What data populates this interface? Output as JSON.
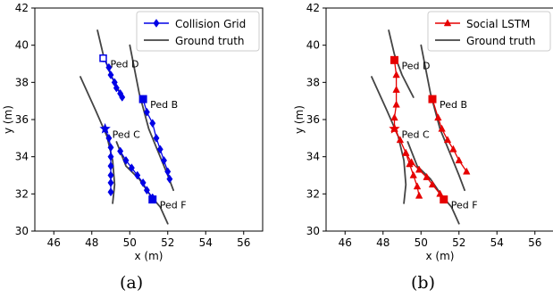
{
  "captions": [
    "(a)",
    "(b)"
  ],
  "chart_data": [
    {
      "type": "line",
      "xlabel": "x (m)",
      "ylabel": "y (m)",
      "xlim": [
        45,
        57
      ],
      "ylim": [
        30,
        42
      ],
      "xticks": [
        46,
        48,
        50,
        52,
        54,
        56
      ],
      "yticks": [
        30,
        32,
        34,
        36,
        38,
        40,
        42
      ],
      "grid": false,
      "legend_position": "top-right",
      "legend": [
        "Collision Grid",
        "Ground truth"
      ],
      "ground_truth": [
        [
          [
            48.3,
            40.8
          ],
          [
            48.6,
            39.5
          ],
          [
            49.0,
            38.4
          ],
          [
            49.4,
            37.6
          ],
          [
            49.6,
            37.2
          ]
        ],
        [
          [
            50.0,
            40.0
          ],
          [
            50.5,
            37.4
          ],
          [
            51.0,
            35.5
          ],
          [
            51.6,
            34.0
          ],
          [
            52.0,
            33.0
          ],
          [
            52.3,
            32.2
          ]
        ],
        [
          [
            47.4,
            38.3
          ],
          [
            48.2,
            36.5
          ],
          [
            48.8,
            35.1
          ],
          [
            49.1,
            33.8
          ],
          [
            49.2,
            32.5
          ],
          [
            49.1,
            31.5
          ]
        ],
        [
          [
            49.3,
            34.8
          ],
          [
            49.8,
            33.5
          ],
          [
            50.5,
            32.8
          ],
          [
            51.1,
            31.9
          ],
          [
            51.6,
            31.3
          ],
          [
            52.0,
            30.4
          ]
        ]
      ],
      "series": [
        {
          "color": "#0000e6",
          "marker": "diamond",
          "points": [
            [
              48.6,
              39.3
            ],
            [
              48.9,
              38.8
            ],
            [
              49.0,
              38.4
            ],
            [
              49.2,
              38.0
            ],
            [
              49.3,
              37.7
            ],
            [
              49.5,
              37.4
            ],
            [
              49.6,
              37.2
            ]
          ]
        },
        {
          "color": "#0000e6",
          "marker": "diamond",
          "points": [
            [
              50.7,
              37.1
            ],
            [
              50.9,
              36.4
            ],
            [
              51.2,
              35.8
            ],
            [
              51.4,
              35.0
            ],
            [
              51.6,
              34.4
            ],
            [
              51.8,
              33.8
            ],
            [
              52.0,
              33.2
            ],
            [
              52.1,
              32.8
            ]
          ]
        },
        {
          "color": "#0000e6",
          "marker": "diamond",
          "points": [
            [
              48.7,
              35.5
            ],
            [
              48.9,
              35.0
            ],
            [
              49.0,
              34.5
            ],
            [
              49.0,
              34.0
            ],
            [
              49.0,
              33.5
            ],
            [
              49.0,
              33.0
            ],
            [
              49.0,
              32.6
            ],
            [
              49.0,
              32.1
            ]
          ]
        },
        {
          "color": "#0000e6",
          "marker": "diamond",
          "points": [
            [
              49.5,
              34.3
            ],
            [
              49.8,
              33.8
            ],
            [
              50.1,
              33.4
            ],
            [
              50.4,
              33.0
            ],
            [
              50.7,
              32.6
            ],
            [
              50.9,
              32.2
            ],
            [
              51.2,
              31.8
            ]
          ]
        }
      ],
      "start_points": [
        {
          "x": 48.6,
          "y": 39.3,
          "marker": "open-square",
          "label": "Ped D"
        },
        {
          "x": 50.7,
          "y": 37.1,
          "marker": "square",
          "label": "Ped B"
        },
        {
          "x": 48.7,
          "y": 35.5,
          "marker": "star",
          "label": "Ped C"
        },
        {
          "x": 51.2,
          "y": 31.7,
          "marker": "square",
          "label": "Ped F"
        }
      ]
    },
    {
      "type": "line",
      "xlabel": "x (m)",
      "ylabel": "y (m)",
      "xlim": [
        45,
        57
      ],
      "ylim": [
        30,
        42
      ],
      "xticks": [
        46,
        48,
        50,
        52,
        54,
        56
      ],
      "yticks": [
        30,
        32,
        34,
        36,
        38,
        40,
        42
      ],
      "grid": false,
      "legend_position": "top-right",
      "legend": [
        "Social LSTM",
        "Ground truth"
      ],
      "ground_truth": [
        [
          [
            48.3,
            40.8
          ],
          [
            48.6,
            39.5
          ],
          [
            49.0,
            38.4
          ],
          [
            49.4,
            37.6
          ],
          [
            49.6,
            37.2
          ]
        ],
        [
          [
            50.0,
            40.0
          ],
          [
            50.5,
            37.4
          ],
          [
            51.0,
            35.5
          ],
          [
            51.6,
            34.0
          ],
          [
            52.0,
            33.0
          ],
          [
            52.3,
            32.2
          ]
        ],
        [
          [
            47.4,
            38.3
          ],
          [
            48.2,
            36.5
          ],
          [
            48.8,
            35.1
          ],
          [
            49.1,
            33.8
          ],
          [
            49.2,
            32.5
          ],
          [
            49.1,
            31.5
          ]
        ],
        [
          [
            49.3,
            34.8
          ],
          [
            49.8,
            33.5
          ],
          [
            50.5,
            32.8
          ],
          [
            51.1,
            31.9
          ],
          [
            51.6,
            31.3
          ],
          [
            52.0,
            30.4
          ]
        ]
      ],
      "series": [
        {
          "color": "#e60000",
          "marker": "triangle",
          "points": [
            [
              48.6,
              39.2
            ],
            [
              48.7,
              38.4
            ],
            [
              48.7,
              37.6
            ],
            [
              48.7,
              36.8
            ],
            [
              48.6,
              36.1
            ],
            [
              48.6,
              35.5
            ]
          ]
        },
        {
          "color": "#e60000",
          "marker": "triangle",
          "points": [
            [
              50.6,
              37.1
            ],
            [
              50.9,
              36.1
            ],
            [
              51.1,
              35.5
            ],
            [
              51.4,
              34.9
            ],
            [
              51.7,
              34.4
            ],
            [
              52.0,
              33.8
            ],
            [
              52.4,
              33.2
            ]
          ]
        },
        {
          "color": "#e60000",
          "marker": "triangle",
          "points": [
            [
              48.6,
              35.5
            ],
            [
              48.9,
              34.9
            ],
            [
              49.2,
              34.2
            ],
            [
              49.4,
              33.6
            ],
            [
              49.6,
              33.0
            ],
            [
              49.8,
              32.4
            ],
            [
              49.9,
              31.9
            ]
          ]
        },
        {
          "color": "#e60000",
          "marker": "triangle",
          "points": [
            [
              49.2,
              34.2
            ],
            [
              49.5,
              33.7
            ],
            [
              49.9,
              33.3
            ],
            [
              50.3,
              32.9
            ],
            [
              50.6,
              32.5
            ],
            [
              51.0,
              32.0
            ],
            [
              51.2,
              31.7
            ]
          ]
        }
      ],
      "start_points": [
        {
          "x": 48.6,
          "y": 39.2,
          "marker": "square",
          "label": "Ped D"
        },
        {
          "x": 50.6,
          "y": 37.1,
          "marker": "square",
          "label": "Ped B"
        },
        {
          "x": 48.6,
          "y": 35.5,
          "marker": "star",
          "label": "Ped C"
        },
        {
          "x": 51.2,
          "y": 31.7,
          "marker": "square",
          "label": "Ped F"
        }
      ]
    }
  ]
}
